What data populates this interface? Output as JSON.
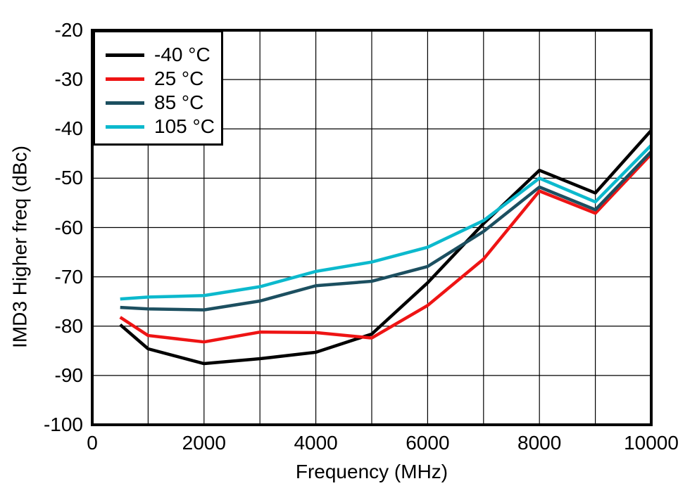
{
  "chart_data": {
    "type": "line",
    "title": "",
    "xlabel": "Frequency (MHz)",
    "ylabel": "IMD3 Higher freq (dBc)",
    "xlim": [
      0,
      10000
    ],
    "ylim": [
      -100,
      -20
    ],
    "x_ticks": [
      0,
      2000,
      4000,
      6000,
      8000,
      10000
    ],
    "y_ticks": [
      -100,
      -90,
      -80,
      -70,
      -60,
      -50,
      -40,
      -30,
      -20
    ],
    "x_grid_step": 1000,
    "y_grid_step": 10,
    "grid": true,
    "legend_position": "top-left",
    "x": [
      500,
      1000,
      2000,
      3000,
      4000,
      5000,
      6000,
      7000,
      8000,
      9000,
      10000
    ],
    "series": [
      {
        "name": "-40 °C",
        "color": "#000000",
        "values": [
          -79.7,
          -84.6,
          -87.6,
          -86.6,
          -85.3,
          -81.6,
          -71.2,
          -59.2,
          -48.4,
          -53.0,
          -40.3
        ]
      },
      {
        "name": "25 °C",
        "color": "#ee1414",
        "values": [
          -78.2,
          -81.9,
          -83.2,
          -81.2,
          -81.3,
          -82.4,
          -75.8,
          -66.4,
          -52.6,
          -57.1,
          -45.1
        ]
      },
      {
        "name": "85 °C",
        "color": "#1c4f60",
        "values": [
          -76.2,
          -76.5,
          -76.7,
          -74.9,
          -71.8,
          -70.9,
          -67.9,
          -60.8,
          -51.8,
          -56.4,
          -44.6
        ]
      },
      {
        "name": "105 °C",
        "color": "#0cb9cd",
        "values": [
          -74.5,
          -74.1,
          -73.8,
          -72.0,
          -68.9,
          -67.0,
          -64.0,
          -58.6,
          -50.0,
          -54.8,
          -43.3
        ]
      }
    ],
    "colors": {
      "grid": "#000000",
      "frame": "#000000",
      "text": "#000000",
      "background": "#ffffff"
    }
  }
}
